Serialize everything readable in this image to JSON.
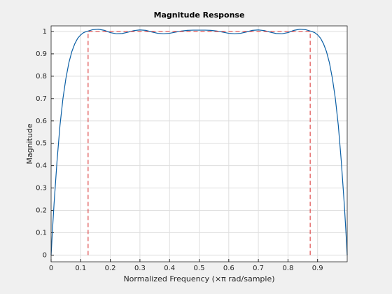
{
  "chart_data": {
    "type": "line",
    "title": "Magnitude Response",
    "x_label": "Normalized Frequency (×π rad/sample)",
    "y_label": "Magnitude",
    "x": [
      0,
      0.005,
      0.01,
      0.02,
      0.03,
      0.04,
      0.05,
      0.06,
      0.07,
      0.08,
      0.09,
      0.1,
      0.11,
      0.12,
      0.14,
      0.16,
      0.18,
      0.2,
      0.22,
      0.24,
      0.26,
      0.28,
      0.3,
      0.32,
      0.34,
      0.36,
      0.38,
      0.4,
      0.42,
      0.44,
      0.46,
      0.48,
      0.5,
      0.52,
      0.54,
      0.56,
      0.58,
      0.6,
      0.62,
      0.64,
      0.66,
      0.68,
      0.7,
      0.72,
      0.74,
      0.76,
      0.78,
      0.8,
      0.82,
      0.84,
      0.86,
      0.88,
      0.89,
      0.9,
      0.91,
      0.92,
      0.93,
      0.94,
      0.95,
      0.96,
      0.97,
      0.98,
      0.99,
      0.995,
      1
    ],
    "series": [
      {
        "color": "#0b5fa5",
        "values": [
          0,
          0.12,
          0.23,
          0.42,
          0.58,
          0.7,
          0.79,
          0.86,
          0.91,
          0.945,
          0.97,
          0.985,
          0.995,
          1.0,
          1.008,
          1.01,
          1.005,
          0.995,
          0.99,
          0.991,
          0.997,
          1.004,
          1.007,
          1.005,
          0.998,
          0.992,
          0.99,
          0.992,
          0.997,
          1.002,
          1.005,
          1.006,
          1.006,
          1.006,
          1.005,
          1.002,
          0.997,
          0.992,
          0.99,
          0.992,
          0.998,
          1.005,
          1.007,
          1.004,
          0.997,
          0.991,
          0.99,
          0.995,
          1.005,
          1.01,
          1.008,
          1.0,
          0.995,
          0.985,
          0.97,
          0.945,
          0.91,
          0.86,
          0.79,
          0.7,
          0.58,
          0.42,
          0.23,
          0.12,
          0
        ]
      }
    ],
    "mask": {
      "color": "#d62728",
      "x": [
        0.125,
        0.125,
        0.875,
        0.875
      ],
      "values": [
        0,
        1,
        1,
        0
      ]
    },
    "xlim": [
      0,
      1
    ],
    "ylim": [
      -0.03,
      1.025
    ],
    "xticks": [
      0,
      0.1,
      0.2,
      0.3,
      0.4,
      0.5,
      0.6,
      0.7,
      0.8,
      0.9
    ],
    "yticks": [
      0,
      0.1,
      0.2,
      0.3,
      0.4,
      0.5,
      0.6,
      0.7,
      0.8,
      0.9,
      1
    ],
    "grid": true
  }
}
